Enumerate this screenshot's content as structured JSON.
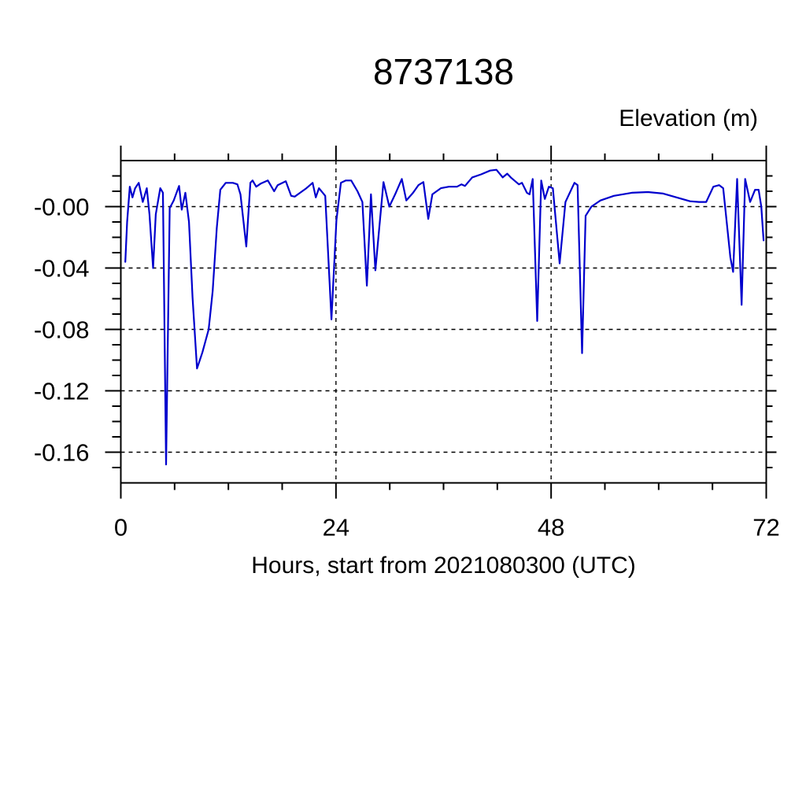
{
  "chart_data": {
    "type": "line",
    "title": "8737138",
    "ylabel": "Elevation (m)",
    "xlabel": "Hours, start from 2021080300 (UTC)",
    "xlim": [
      0,
      72
    ],
    "ylim": [
      -0.18,
      0.03
    ],
    "xticks": [
      0,
      24,
      48,
      72
    ],
    "xtick_labels": [
      "0",
      "24",
      "48",
      "72"
    ],
    "x_minor_step": 6,
    "ytick_values": [
      0,
      -0.04,
      -0.08,
      -0.12,
      -0.16
    ],
    "ytick_labels": [
      "-0.00",
      "-0.04",
      "-0.08",
      "-0.12",
      "-0.16"
    ],
    "y_minor_step": 0.01,
    "grid": {
      "style": "dashed",
      "horizontal_at": [
        0,
        -0.04,
        -0.08,
        -0.12,
        -0.16
      ],
      "vertical_at": [
        24,
        48
      ]
    },
    "legend_position": "none",
    "line_color": "#0000cd",
    "frame_color": "#000000",
    "series": [
      {
        "name": "elevation",
        "points": [
          [
            0.5,
            -0.036
          ],
          [
            0.7,
            -0.01
          ],
          [
            1.0,
            0.013
          ],
          [
            1.3,
            0.006
          ],
          [
            1.6,
            0.012
          ],
          [
            2.0,
            0.0155
          ],
          [
            2.45,
            0.003
          ],
          [
            2.9,
            0.012
          ],
          [
            3.2,
            -0.005
          ],
          [
            3.6,
            -0.04
          ],
          [
            3.9,
            -0.005
          ],
          [
            4.4,
            0.012
          ],
          [
            4.7,
            0.009
          ],
          [
            5.05,
            -0.168
          ],
          [
            5.45,
            -0.001
          ],
          [
            5.9,
            0.004
          ],
          [
            6.5,
            0.0135
          ],
          [
            6.8,
            -0.002
          ],
          [
            7.2,
            0.009
          ],
          [
            7.6,
            -0.01
          ],
          [
            8.0,
            -0.059
          ],
          [
            8.5,
            -0.1055
          ],
          [
            9.1,
            -0.095
          ],
          [
            9.8,
            -0.08
          ],
          [
            10.25,
            -0.055
          ],
          [
            10.7,
            -0.014
          ],
          [
            11.1,
            0.011
          ],
          [
            11.7,
            0.0155
          ],
          [
            12.5,
            0.0155
          ],
          [
            13.0,
            0.0145
          ],
          [
            13.35,
            0.008
          ],
          [
            14.0,
            -0.026
          ],
          [
            14.45,
            0.0155
          ],
          [
            14.7,
            0.017
          ],
          [
            15.1,
            0.013
          ],
          [
            15.6,
            0.015
          ],
          [
            16.4,
            0.017
          ],
          [
            17.1,
            0.01
          ],
          [
            17.5,
            0.014
          ],
          [
            18.4,
            0.0165
          ],
          [
            19.0,
            0.007
          ],
          [
            19.4,
            0.0065
          ],
          [
            20.0,
            0.009
          ],
          [
            20.7,
            0.012
          ],
          [
            21.4,
            0.0155
          ],
          [
            21.75,
            0.006
          ],
          [
            22.1,
            0.012
          ],
          [
            22.8,
            0.007
          ],
          [
            23.5,
            -0.0735
          ],
          [
            24.05,
            -0.009
          ],
          [
            24.55,
            0.0155
          ],
          [
            25.1,
            0.017
          ],
          [
            25.7,
            0.017
          ],
          [
            26.4,
            0.01
          ],
          [
            26.95,
            0.003
          ],
          [
            27.45,
            -0.0515
          ],
          [
            27.9,
            0.008
          ],
          [
            28.4,
            -0.0415
          ],
          [
            29.3,
            0.016
          ],
          [
            29.95,
            0.0
          ],
          [
            30.6,
            0.008
          ],
          [
            31.35,
            0.018
          ],
          [
            31.85,
            0.004
          ],
          [
            32.6,
            0.009
          ],
          [
            33.2,
            0.014
          ],
          [
            33.75,
            0.016
          ],
          [
            34.3,
            -0.008
          ],
          [
            34.75,
            0.008
          ],
          [
            35.7,
            0.012
          ],
          [
            36.6,
            0.013
          ],
          [
            37.5,
            0.013
          ],
          [
            38.0,
            0.0145
          ],
          [
            38.4,
            0.0135
          ],
          [
            39.2,
            0.019
          ],
          [
            40.2,
            0.021
          ],
          [
            41.2,
            0.0235
          ],
          [
            41.9,
            0.024
          ],
          [
            42.6,
            0.019
          ],
          [
            43.1,
            0.0215
          ],
          [
            43.5,
            0.019
          ],
          [
            44.4,
            0.0145
          ],
          [
            44.75,
            0.0155
          ],
          [
            45.3,
            0.009
          ],
          [
            45.6,
            0.008
          ],
          [
            45.95,
            0.018
          ],
          [
            46.45,
            -0.0745
          ],
          [
            46.9,
            0.017
          ],
          [
            47.3,
            0.005
          ],
          [
            47.75,
            0.013
          ],
          [
            48.2,
            0.012
          ],
          [
            48.95,
            -0.037
          ],
          [
            49.6,
            0.003
          ],
          [
            50.6,
            0.0155
          ],
          [
            50.95,
            0.014
          ],
          [
            51.45,
            -0.0955
          ],
          [
            51.85,
            -0.006
          ],
          [
            52.5,
            0.0
          ],
          [
            53.5,
            0.004
          ],
          [
            55.0,
            0.007
          ],
          [
            57.0,
            0.009
          ],
          [
            58.8,
            0.0095
          ],
          [
            60.5,
            0.0085
          ],
          [
            62.0,
            0.006
          ],
          [
            63.5,
            0.0035
          ],
          [
            64.5,
            0.003
          ],
          [
            65.3,
            0.003
          ],
          [
            66.1,
            0.013
          ],
          [
            66.75,
            0.014
          ],
          [
            67.2,
            0.012
          ],
          [
            68.0,
            -0.033
          ],
          [
            68.3,
            -0.0425
          ],
          [
            68.75,
            0.018
          ],
          [
            69.25,
            -0.064
          ],
          [
            69.65,
            0.018
          ],
          [
            70.2,
            0.003
          ],
          [
            70.75,
            0.011
          ],
          [
            71.15,
            0.011
          ],
          [
            71.45,
            0.0
          ],
          [
            71.7,
            -0.022
          ]
        ]
      }
    ]
  }
}
